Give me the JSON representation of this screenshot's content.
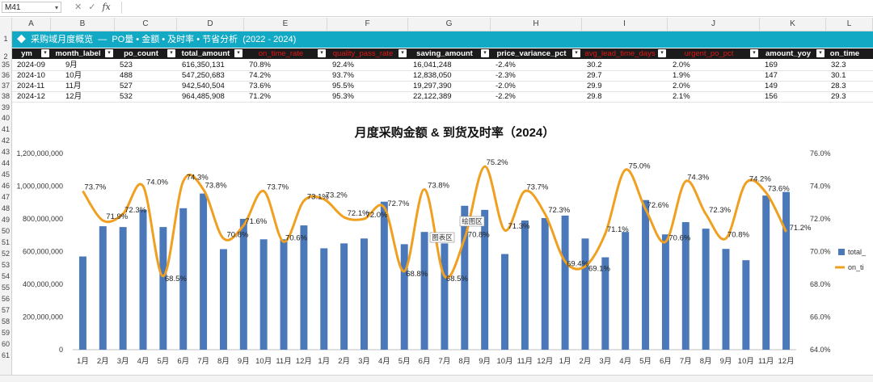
{
  "formula_bar": {
    "name_box": "M41",
    "fx_label": "fx",
    "cancel_icon": "✕",
    "enter_icon": "✓",
    "formula": ""
  },
  "columns": [
    "A",
    "B",
    "C",
    "D",
    "E",
    "F",
    "G",
    "H",
    "I",
    "J",
    "K",
    "L"
  ],
  "row_numbers": [
    "1",
    "2",
    "35",
    "36",
    "37",
    "38",
    "39",
    "40",
    "41",
    "42",
    "43",
    "44",
    "45",
    "46",
    "47",
    "48",
    "49",
    "50",
    "51",
    "52",
    "53",
    "54",
    "55",
    "56",
    "57",
    "58",
    "59",
    "60",
    "61"
  ],
  "banner": {
    "text": "◆  采购域月度概览  —  PO量 • 金额 • 及时率 • 节省分析  (2022 - 2024)"
  },
  "table": {
    "headers": [
      {
        "label": "ym",
        "red": false
      },
      {
        "label": "month_label",
        "red": false
      },
      {
        "label": "po_count",
        "red": false
      },
      {
        "label": "total_amount",
        "red": false
      },
      {
        "label": "on_time_rate",
        "red": true
      },
      {
        "label": "quality_pass_rate",
        "red": true
      },
      {
        "label": "saving_amount",
        "red": false
      },
      {
        "label": "price_variance_pct",
        "red": false
      },
      {
        "label": "avg_lead_time_days",
        "red": true
      },
      {
        "label": "urgent_po_pct",
        "red": true
      },
      {
        "label": "amount_yoy",
        "red": false
      },
      {
        "label": "on_time",
        "red": false
      }
    ],
    "rows": [
      [
        "2024-09",
        "9月",
        "523",
        "616,350,131",
        "70.8%",
        "92.4%",
        "16,041,248",
        "-2.4%",
        "30.2",
        "2.0%",
        "169",
        "32.3"
      ],
      [
        "2024-10",
        "10月",
        "488",
        "547,250,683",
        "74.2%",
        "93.7%",
        "12,838,050",
        "-2.3%",
        "29.7",
        "1.9%",
        "147",
        "30.1"
      ],
      [
        "2024-11",
        "11月",
        "527",
        "942,540,504",
        "73.6%",
        "95.5%",
        "19,297,390",
        "-2.0%",
        "29.9",
        "2.0%",
        "149",
        "28.3"
      ],
      [
        "2024-12",
        "12月",
        "532",
        "964,485,908",
        "71.2%",
        "95.3%",
        "22,122,389",
        "-2.2%",
        "29.8",
        "2.1%",
        "156",
        "29.3"
      ]
    ]
  },
  "chart_data": {
    "type": "bar",
    "title": "月度采购金额 & 到货及时率（2024）",
    "categories": [
      "1月",
      "2月",
      "3月",
      "4月",
      "5月",
      "6月",
      "7月",
      "8月",
      "9月",
      "10月",
      "11月",
      "12月",
      "1月",
      "2月",
      "3月",
      "4月",
      "5月",
      "6月",
      "7月",
      "8月",
      "9月",
      "10月",
      "11月",
      "12月",
      "1月",
      "2月",
      "3月",
      "4月",
      "5月",
      "6月",
      "7月",
      "8月",
      "9月",
      "10月",
      "11月",
      "12月"
    ],
    "series": [
      {
        "name": "total_amount",
        "type": "bar",
        "axis": "left",
        "color": "#4a78b8",
        "values": [
          570000000,
          755000000,
          750000000,
          855000000,
          750000000,
          865000000,
          955000000,
          615000000,
          800000000,
          675000000,
          675000000,
          760000000,
          620000000,
          650000000,
          680000000,
          905000000,
          645000000,
          720000000,
          650000000,
          880000000,
          855000000,
          585000000,
          790000000,
          805000000,
          820000000,
          680000000,
          565000000,
          720000000,
          915000000,
          705000000,
          780000000,
          740000000,
          616350131,
          547250683,
          942540504,
          964485908
        ]
      },
      {
        "name": "on_time_rate",
        "type": "line",
        "axis": "right",
        "color": "#f0a020",
        "values": [
          73.7,
          71.9,
          72.3,
          74.0,
          68.5,
          74.3,
          73.8,
          70.8,
          71.6,
          73.7,
          70.6,
          73.1,
          73.2,
          72.1,
          72.0,
          72.7,
          68.8,
          73.8,
          68.5,
          70.8,
          75.2,
          71.3,
          73.7,
          72.3,
          69.4,
          69.1,
          71.1,
          75.0,
          72.6,
          70.6,
          74.3,
          72.3,
          70.8,
          74.2,
          73.6,
          71.2
        ]
      }
    ],
    "left_axis": {
      "min": 0,
      "max": 1200000000,
      "ticks": [
        "0",
        "200,000,000",
        "400,000,000",
        "600,000,000",
        "800,000,000",
        "1,000,000,000",
        "1,200,000,000"
      ]
    },
    "right_axis": {
      "min": 64.0,
      "max": 76.0,
      "ticks": [
        "64.0%",
        "66.0%",
        "68.0%",
        "70.0%",
        "72.0%",
        "74.0%",
        "76.0%"
      ]
    },
    "legend": [
      {
        "label": "total_",
        "color": "#4a78b8"
      },
      {
        "label": "on_ti",
        "color": "#f0a020"
      }
    ],
    "legend_position": "right",
    "tooltips": [
      "图表区",
      "绘图区"
    ]
  }
}
